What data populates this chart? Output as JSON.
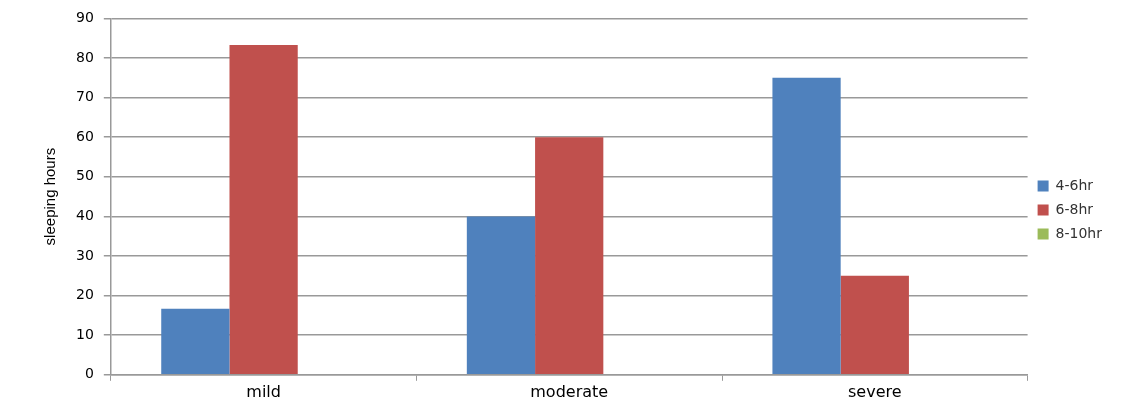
{
  "chart_data": {
    "type": "bar",
    "ylabel": "sleeping hours",
    "categories": [
      "mild",
      "moderate",
      "severe"
    ],
    "series": [
      {
        "name": "4-6hr",
        "color": "#4f81bd",
        "values": [
          16.7,
          40,
          75
        ]
      },
      {
        "name": "6-8hr",
        "color": "#c0504d",
        "values": [
          83.3,
          60,
          25
        ]
      },
      {
        "name": "8-10hr",
        "color": "#9bbb59",
        "values": [
          0,
          0,
          0
        ]
      }
    ],
    "ylim": [
      0,
      90
    ],
    "yticks": [
      0,
      10,
      20,
      30,
      40,
      50,
      60,
      70,
      80,
      90
    ],
    "grid": "y",
    "legend": "right"
  }
}
